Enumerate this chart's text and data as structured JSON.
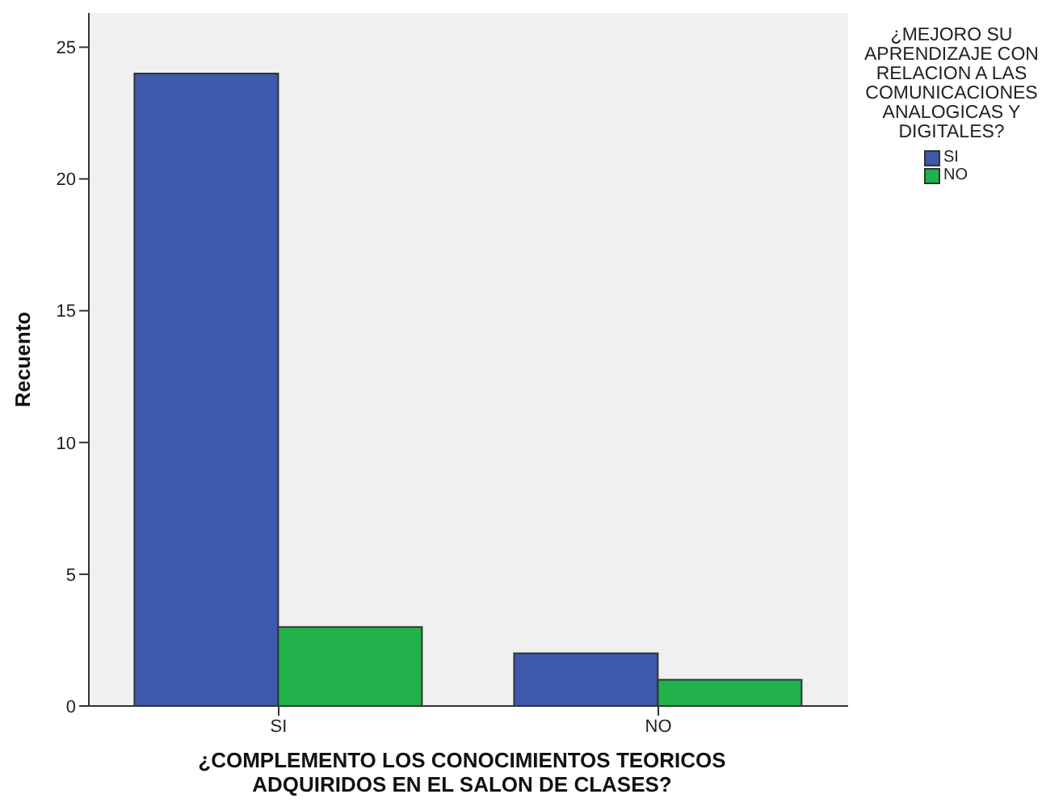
{
  "chart_data": {
    "type": "bar",
    "xlabel": "¿COMPLEMENTO LOS CONOCIMIENTOS TEORICOS ADQUIRIDOS EN EL SALON DE CLASES?",
    "ylabel": "Recuento",
    "legend_title": "¿MEJORO SU APRENDIZAJE CON RELACION A LAS COMUNICACIONES ANALOGICAS Y DIGITALES?",
    "categories": [
      "SI",
      "NO"
    ],
    "series": [
      {
        "name": "SI",
        "color": "#3e58ac",
        "values": [
          24,
          2
        ]
      },
      {
        "name": "NO",
        "color": "#21b24b",
        "values": [
          3,
          1
        ]
      }
    ],
    "ylim": [
      0,
      26.3
    ],
    "yticks": [
      0,
      5,
      10,
      15,
      20,
      25
    ],
    "grid": false,
    "legend": "top right"
  }
}
